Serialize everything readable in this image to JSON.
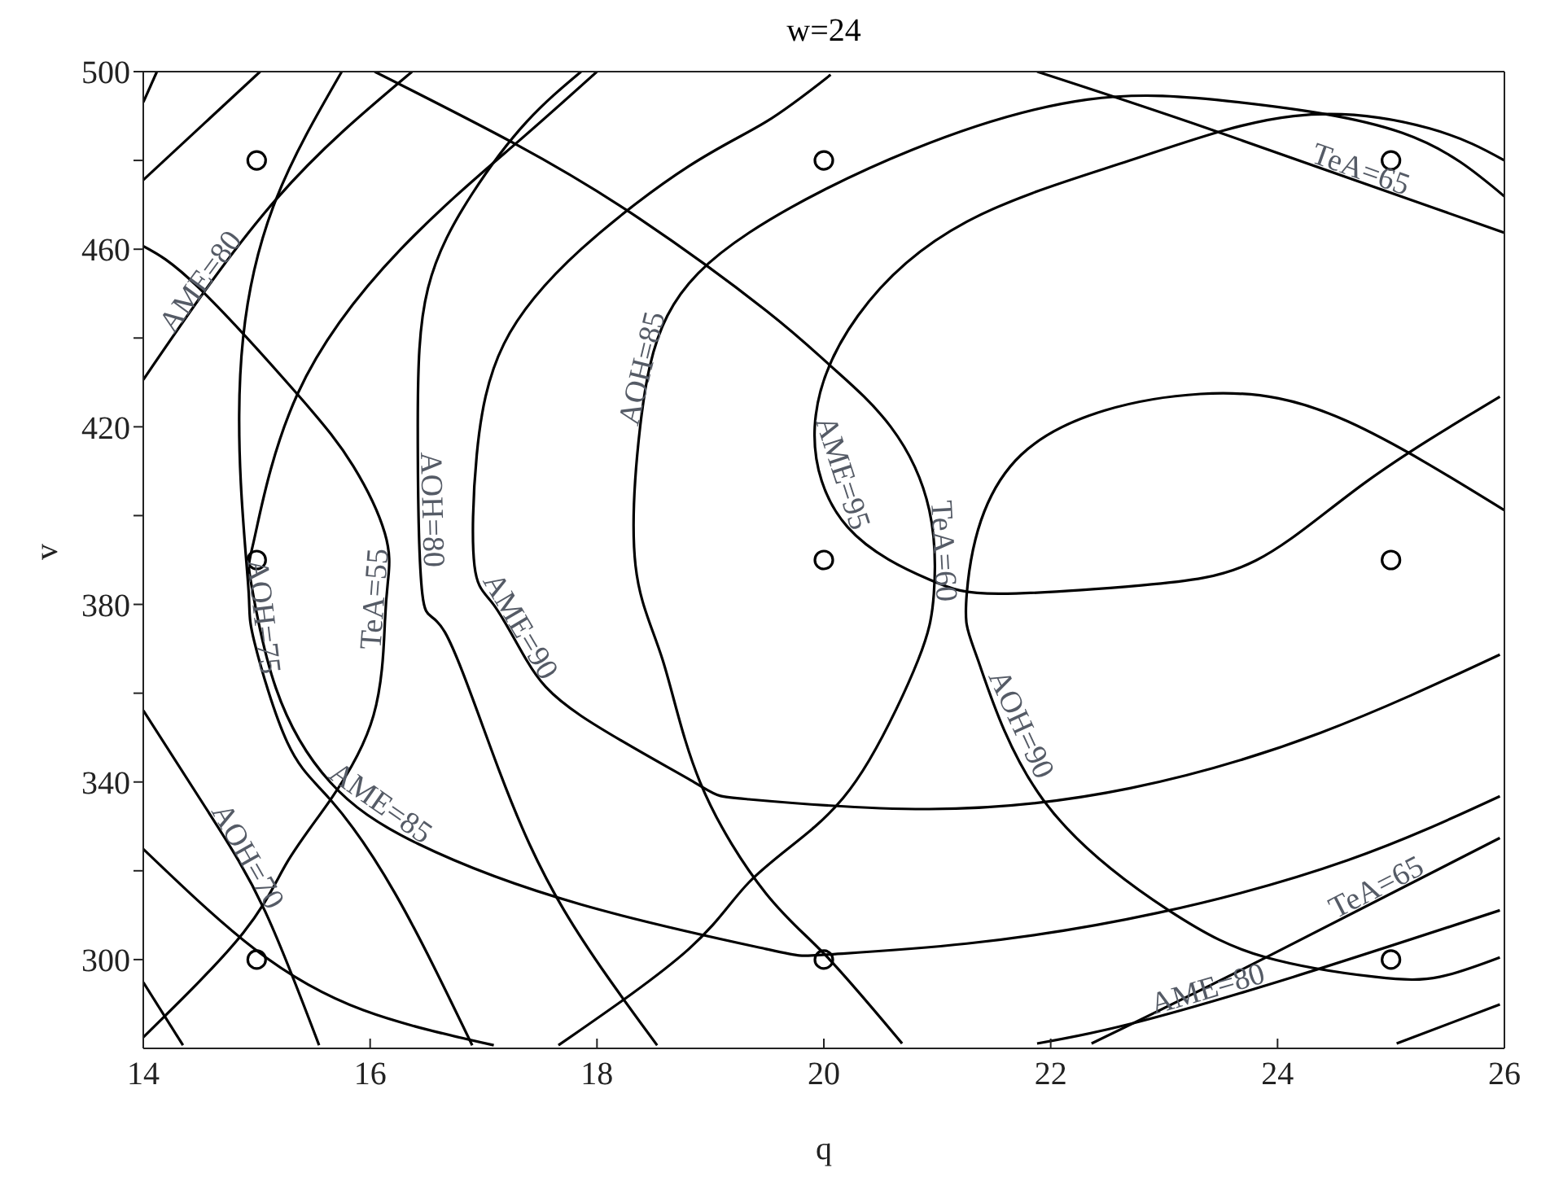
{
  "chart_data": {
    "type": "line",
    "title": "w=24",
    "xlabel": "q",
    "ylabel": "v",
    "xlim": [
      14,
      26
    ],
    "ylim": [
      280,
      500
    ],
    "xticks": [
      14,
      16,
      18,
      20,
      22,
      24,
      26
    ],
    "yticks": [
      300,
      {
        "value": 320,
        "label": null
      },
      340,
      {
        "value": 360,
        "label": null
      },
      380,
      {
        "value": 400,
        "label": null
      },
      420,
      {
        "value": 440,
        "label": null
      },
      460,
      {
        "value": 480,
        "label": null
      },
      500
    ],
    "series": [
      {
        "name": "TeA=55",
        "color": "#000000",
        "x": [
          14,
          14.49,
          15.36,
          15.85,
          16.13,
          16.16,
          16.13,
          16.03,
          15.65,
          15.27,
          14.88,
          14
        ],
        "values": [
          460.7,
          451.3,
          427.3,
          411.2,
          396,
          386,
          376,
          355,
          336,
          322,
          306,
          282.5
        ]
      },
      {
        "name": "TeA=60",
        "color": "#000000",
        "x": [
          16.04,
          17.28,
          18.38,
          19.49,
          20.06,
          20.59,
          20.93,
          20.97,
          20.83,
          20.4,
          19.92,
          19.34,
          18.81,
          17.66
        ],
        "values": [
          500,
          483.7,
          466.8,
          446.2,
          433.7,
          420,
          401.2,
          382.4,
          367.4,
          344.9,
          329.9,
          317.4,
          302.4,
          280.7
        ]
      },
      {
        "name": "TeA=65",
        "color": "#000000",
        "x": [
          21.88,
          23.42,
          26
        ],
        "values": [
          500,
          486.9,
          463.7
        ]
      },
      {
        "name": "TeA=65",
        "color": "#000000",
        "x": [
          22.36,
          23.9,
          25.96
        ],
        "values": [
          281.1,
          300.5,
          327.4
        ]
      },
      {
        "color": "#000000",
        "x": [
          14,
          14.12
        ],
        "values": [
          493.1,
          500
        ]
      },
      {
        "color": "#000000",
        "x": [
          14,
          15.03
        ],
        "values": [
          475.6,
          500
        ]
      },
      {
        "color": "#000000",
        "x": [
          25.05,
          25.96
        ],
        "values": [
          281.1,
          289.9
        ]
      },
      {
        "name": "AME=80",
        "color": "#000000",
        "x": [
          16.37,
          15.17,
          14
        ],
        "values": [
          500,
          471.2,
          430.6
        ]
      },
      {
        "name": "AME=80",
        "color": "#000000",
        "x": [
          21.88,
          22.7,
          24.14,
          25.96
        ],
        "values": [
          281.1,
          285.5,
          296.1,
          311.1
        ]
      },
      {
        "name": "AME=85",
        "color": "#000000",
        "x": [
          18,
          17.28,
          16.27,
          15.36,
          14.98,
          14.95,
          15.17,
          15.65,
          16.42,
          17.86,
          19.49,
          20.01,
          21.26,
          22.94,
          24.62,
          25.96
        ],
        "values": [
          500,
          483.7,
          460,
          427.4,
          394.9,
          384.9,
          361.1,
          339.9,
          326.1,
          312.4,
          302.4,
          301.1,
          303.6,
          310.5,
          322.4,
          336.8
        ]
      },
      {
        "name": "AME=90",
        "color": "#000000",
        "x": [
          20.06,
          19.49,
          18.81,
          17.86,
          17.18,
          16.94,
          16.92,
          17.09,
          17.38,
          17.86,
          18.86,
          19.34,
          20.93,
          22.7,
          24.38,
          25.96
        ],
        "values": [
          499.3,
          488.7,
          478.7,
          460,
          438.7,
          413.7,
          388.7,
          379.9,
          367.4,
          354.9,
          339.9,
          336.1,
          333.9,
          338.6,
          351.1,
          368.7
        ]
      },
      {
        "name": "AME=95",
        "color": "#000000",
        "x": [
          26,
          25.34,
          24.14,
          22.7,
          21.26,
          20.3,
          19.92,
          20.21,
          20.93,
          21.55,
          22.8,
          23.81,
          24.77,
          25.96
        ],
        "values": [
          480,
          487.2,
          490,
          480,
          466.2,
          445,
          420,
          397.4,
          385.6,
          382.4,
          384.3,
          389.9,
          407.4,
          426.8
        ]
      },
      {
        "name": "AOH=70",
        "color": "#000000",
        "x": [
          14,
          14.59,
          15.07,
          15.55
        ],
        "values": [
          356.1,
          332.6,
          311.1,
          280.7
        ]
      },
      {
        "color": "#000000",
        "x": [
          14,
          14.35
        ],
        "values": [
          294.9,
          280.7
        ]
      },
      {
        "color": "#000000",
        "x": [
          14,
          14.98,
          15.94,
          17.09
        ],
        "values": [
          324.9,
          302.4,
          288.6,
          280.7
        ]
      },
      {
        "name": "AOH=75",
        "color": "#000000",
        "x": [
          15.75,
          15.17,
          14.88,
          14.86,
          14.93,
          14.98,
          15.27,
          15.65,
          16.22,
          16.9
        ],
        "values": [
          500,
          471.2,
          440,
          407.4,
          382.4,
          371.5,
          348.9,
          336,
          314.9,
          280.7
        ]
      },
      {
        "name": "AOH=80",
        "color": "#000000",
        "x": [
          17.86,
          17.38,
          16.9,
          16.51,
          16.42,
          16.46,
          16.66,
          17.14,
          17.71,
          18.53
        ],
        "values": [
          500,
          488.7,
          472.5,
          451.2,
          419.9,
          382.4,
          373.7,
          342.4,
          311.1,
          280.7
        ]
      },
      {
        "name": "AOH=85",
        "color": "#000000",
        "x": [
          26,
          25.1,
          23.66,
          22.32,
          20.78,
          19.34,
          18.62,
          18.38,
          18.34,
          18.58,
          18.91,
          19.49,
          20.01,
          20.69
        ],
        "values": [
          471.9,
          486.2,
          493.1,
          493.7,
          482.4,
          463.7,
          445,
          419.9,
          388.7,
          367.4,
          339.9,
          314.9,
          301.1,
          281.1
        ]
      },
      {
        "name": "AOH=90",
        "color": "#000000",
        "x": [
          26,
          24.62,
          23.32,
          21.74,
          21.26,
          21.36,
          21.93,
          23.04,
          23.9,
          24.86,
          25.43,
          25.96
        ],
        "values": [
          401.2,
          421.2,
          427.4,
          413.7,
          382.4,
          367.4,
          336.1,
          311.1,
          300.5,
          296.1,
          296.1,
          300.5
        ]
      },
      {
        "type": "scatter",
        "marker": "circle",
        "color": "#000000",
        "x": [
          15,
          20,
          25,
          15,
          20,
          25,
          15,
          20,
          25
        ],
        "values": [
          480,
          480,
          480,
          390,
          390,
          390,
          300,
          300,
          300
        ]
      }
    ]
  }
}
